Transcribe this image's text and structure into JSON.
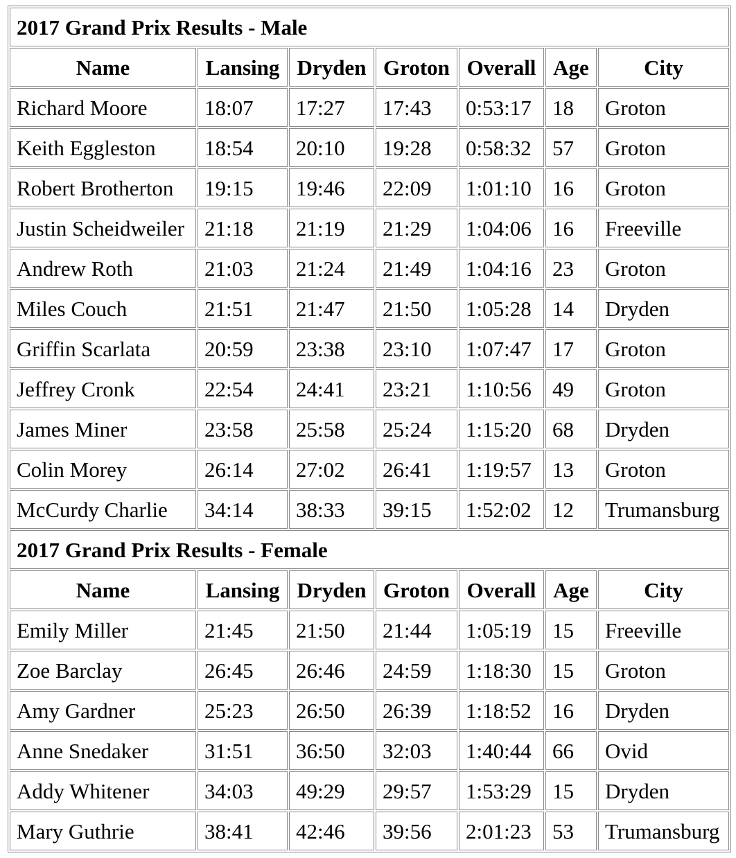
{
  "sections": [
    {
      "title": "2017 Grand Prix Results - Male",
      "headers": [
        "Name",
        "Lansing",
        "Dryden",
        "Groton",
        "Overall",
        "Age",
        "City"
      ],
      "rows": [
        [
          "Richard Moore",
          "18:07",
          "17:27",
          "17:43",
          "0:53:17",
          "18",
          "Groton"
        ],
        [
          "Keith Eggleston",
          "18:54",
          "20:10",
          "19:28",
          "0:58:32",
          "57",
          "Groton"
        ],
        [
          "Robert Brotherton",
          "19:15",
          "19:46",
          "22:09",
          "1:01:10",
          "16",
          "Groton"
        ],
        [
          "Justin Scheidweiler",
          "21:18",
          "21:19",
          "21:29",
          "1:04:06",
          "16",
          "Freeville"
        ],
        [
          "Andrew Roth",
          "21:03",
          "21:24",
          "21:49",
          "1:04:16",
          "23",
          "Groton"
        ],
        [
          "Miles Couch",
          "21:51",
          "21:47",
          "21:50",
          "1:05:28",
          "14",
          "Dryden"
        ],
        [
          "Griffin Scarlata",
          "20:59",
          "23:38",
          "23:10",
          "1:07:47",
          "17",
          "Groton"
        ],
        [
          "Jeffrey Cronk",
          "22:54",
          "24:41",
          "23:21",
          "1:10:56",
          "49",
          "Groton"
        ],
        [
          "James Miner",
          "23:58",
          "25:58",
          "25:24",
          "1:15:20",
          "68",
          "Dryden"
        ],
        [
          "Colin Morey",
          "26:14",
          "27:02",
          "26:41",
          "1:19:57",
          "13",
          "Groton"
        ],
        [
          "McCurdy Charlie",
          "34:14",
          "38:33",
          "39:15",
          "1:52:02",
          "12",
          "Trumansburg"
        ]
      ]
    },
    {
      "title": "2017 Grand Prix Results - Female",
      "headers": [
        "Name",
        "Lansing",
        "Dryden",
        "Groton",
        "Overall",
        "Age",
        "City"
      ],
      "rows": [
        [
          "Emily Miller",
          "21:45",
          "21:50",
          "21:44",
          "1:05:19",
          "15",
          "Freeville"
        ],
        [
          "Zoe Barclay",
          "26:45",
          "26:46",
          "24:59",
          "1:18:30",
          "15",
          "Groton"
        ],
        [
          "Amy Gardner",
          "25:23",
          "26:50",
          "26:39",
          "1:18:52",
          "16",
          "Dryden"
        ],
        [
          "Anne Snedaker",
          "31:51",
          "36:50",
          "32:03",
          "1:40:44",
          "66",
          "Ovid"
        ],
        [
          "Addy Whitener",
          "34:03",
          "49:29",
          "29:57",
          "1:53:29",
          "15",
          "Dryden"
        ],
        [
          "Mary Guthrie",
          "38:41",
          "42:46",
          "39:56",
          "2:01:23",
          "53",
          "Trumansburg"
        ]
      ]
    }
  ]
}
